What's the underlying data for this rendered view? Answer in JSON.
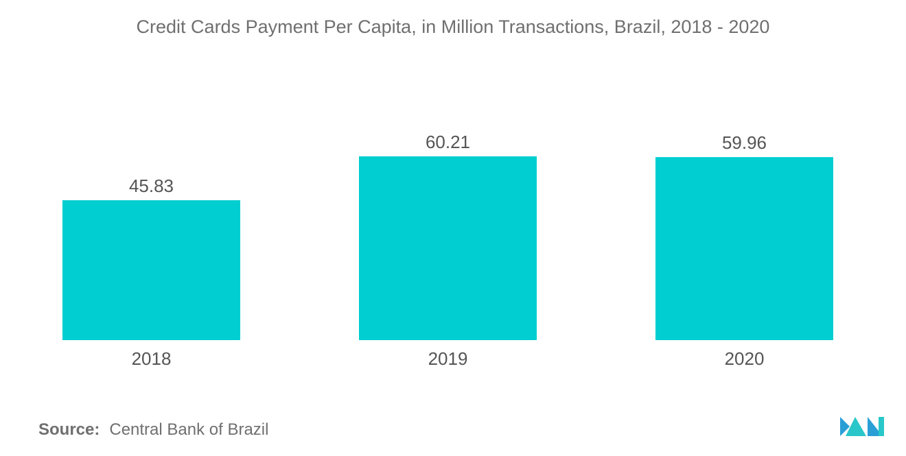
{
  "chart_data": {
    "type": "bar",
    "title": "Credit Cards Payment Per Capita, in Million Transactions, Brazil, 2018 - 2020",
    "categories": [
      "2018",
      "2019",
      "2020"
    ],
    "values": [
      45.83,
      60.21,
      59.96
    ],
    "value_labels": [
      "45.83",
      "60.21",
      "59.96"
    ],
    "xlabel": "",
    "ylabel": "",
    "ylim": [
      0,
      60.21
    ],
    "grid": false,
    "legend": "none",
    "bar_color": "#00ced1"
  },
  "footer": {
    "source_label": "Source:",
    "source_text": "Central Bank of Brazil"
  },
  "logo": {
    "icon": "mordor-intelligence-logo-icon",
    "colors": [
      "#2a9fd6",
      "#29c7c9"
    ]
  }
}
